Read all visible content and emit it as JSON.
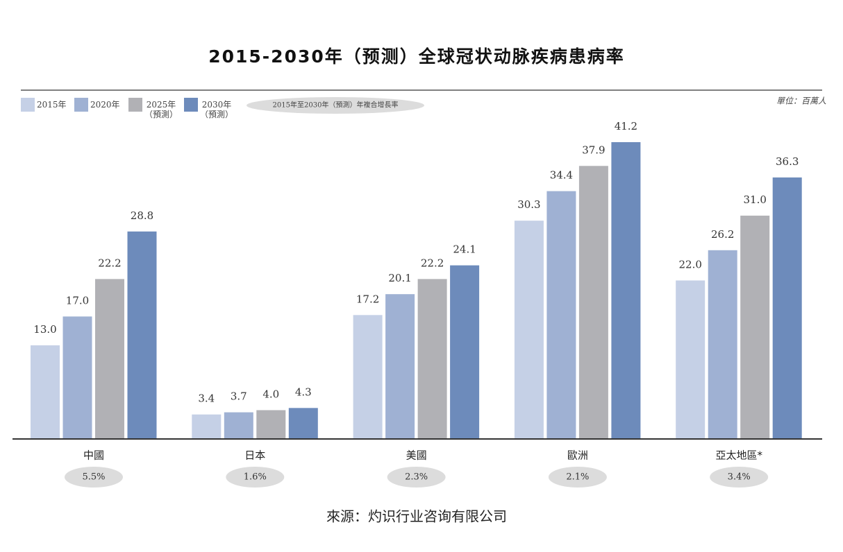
{
  "chart_data": {
    "type": "bar",
    "title": "2015-2030年（预测）全球冠状动脉疾病患病率",
    "unit": "單位：百萬人",
    "source": "來源：灼识行业咨询有限公司",
    "categories": [
      "中國",
      "日本",
      "美國",
      "歐洲",
      "亞太地區*"
    ],
    "series": [
      {
        "name": "2015年",
        "color": "#c5d0e6",
        "values": [
          13.0,
          3.4,
          17.2,
          30.3,
          22.0
        ]
      },
      {
        "name": "2020年",
        "color": "#9fb1d3",
        "values": [
          17.0,
          3.7,
          20.1,
          34.4,
          26.2
        ]
      },
      {
        "name": "2025年\n（預測）",
        "color": "#b1b1b5",
        "values": [
          22.2,
          4.0,
          22.2,
          37.9,
          31.0
        ]
      },
      {
        "name": "2030年\n（預測）",
        "color": "#6d8bbb",
        "values": [
          28.8,
          4.3,
          24.1,
          41.2,
          36.3
        ]
      }
    ],
    "ylim": [
      0,
      45
    ],
    "cagr": {
      "label": "2015年至2030年（預測）年複合增長率",
      "values": [
        5.5,
        1.6,
        2.3,
        2.1,
        3.4
      ],
      "value_labels": [
        "5.5%",
        "1.6%",
        "2.3%",
        "2.1%",
        "3.4%"
      ]
    }
  }
}
